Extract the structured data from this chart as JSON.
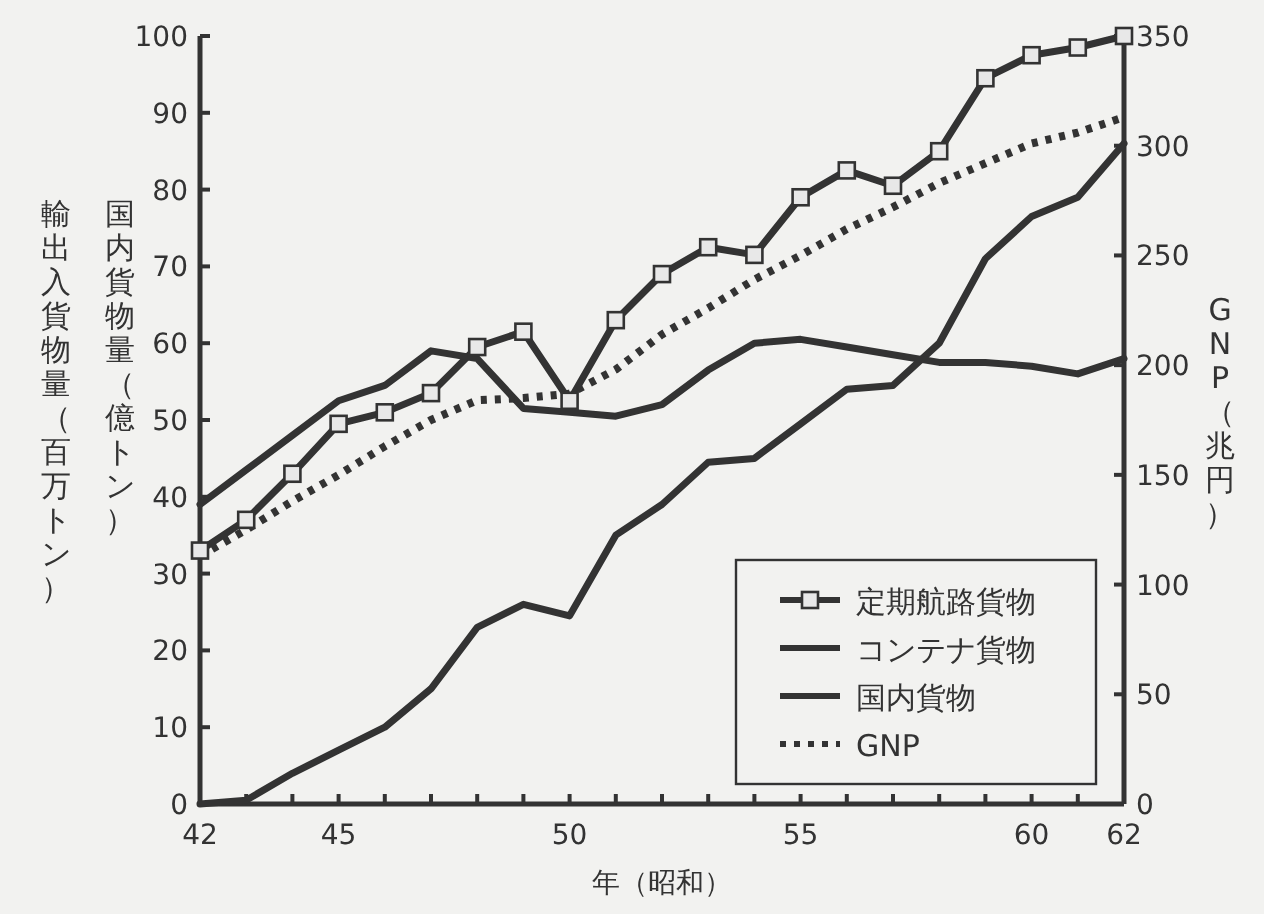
{
  "chart_data": {
    "type": "line",
    "xlabel": "年（昭和）",
    "ylabel": "輸出入貨物量（百万トン）",
    "y2label": "GNP（兆円）",
    "annotations": [
      "国内貨物量（億トン）"
    ],
    "x": [
      42,
      43,
      44,
      45,
      46,
      47,
      48,
      49,
      50,
      51,
      52,
      53,
      54,
      55,
      56,
      57,
      58,
      59,
      60,
      61,
      62
    ],
    "series": [
      {
        "name": "定期航路貨物",
        "color": "#333333",
        "marker": "square",
        "line_style": "solid",
        "values": [
          33,
          37,
          43,
          49.5,
          51,
          53.5,
          59.5,
          61.5,
          52.5,
          63,
          69,
          72.5,
          71.5,
          79,
          82.5,
          80.5,
          85,
          94.5,
          97.5,
          98.5,
          100
        ]
      },
      {
        "name": "コンテナ貨物",
        "color": "#333333",
        "marker": "none",
        "line_style": "solid",
        "values": [
          0,
          0.5,
          4,
          7,
          10,
          15,
          23,
          26,
          24.5,
          35,
          39,
          44.5,
          45,
          49.5,
          54,
          54.5,
          60,
          71,
          76.5,
          79,
          86
        ]
      },
      {
        "name": "国内貨物",
        "color": "#333333",
        "marker": "none",
        "line_style": "solid",
        "values": [
          39,
          43.5,
          48,
          52.5,
          54.5,
          59,
          58,
          51.5,
          51,
          50.5,
          52,
          56.5,
          60,
          60.5,
          59.5,
          58.5,
          57.5,
          57.5,
          57,
          56,
          58
        ]
      },
      {
        "name": "GNP",
        "color": "#333333",
        "marker": "none",
        "line_style": "dotted",
        "axis": "y2",
        "values": [
          113,
          125,
          138,
          150,
          163,
          175,
          184,
          185,
          187,
          198,
          214,
          226,
          239,
          250,
          262,
          272,
          283,
          292,
          301,
          306,
          313
        ]
      }
    ],
    "xlim": [
      42,
      62
    ],
    "xticks": [
      42,
      {
        "value": 43,
        "label": null
      },
      {
        "value": 44,
        "label": null
      },
      45,
      {
        "value": 46,
        "label": null
      },
      {
        "value": 47,
        "label": null
      },
      {
        "value": 48,
        "label": null
      },
      {
        "value": 49,
        "label": null
      },
      50,
      {
        "value": 51,
        "label": null
      },
      {
        "value": 52,
        "label": null
      },
      {
        "value": 53,
        "label": null
      },
      {
        "value": 54,
        "label": null
      },
      55,
      {
        "value": 56,
        "label": null
      },
      {
        "value": 57,
        "label": null
      },
      {
        "value": 58,
        "label": null
      },
      {
        "value": 59,
        "label": null
      },
      60,
      {
        "value": 61,
        "label": null
      },
      62
    ],
    "ylim": [
      0,
      100
    ],
    "yticks": [
      0,
      10,
      20,
      30,
      40,
      50,
      60,
      70,
      80,
      90,
      100
    ],
    "y2lim": [
      0,
      350
    ],
    "y2ticks": [
      0,
      50,
      100,
      150,
      200,
      250,
      300,
      350
    ],
    "grid": false,
    "legend": "bottom right"
  }
}
